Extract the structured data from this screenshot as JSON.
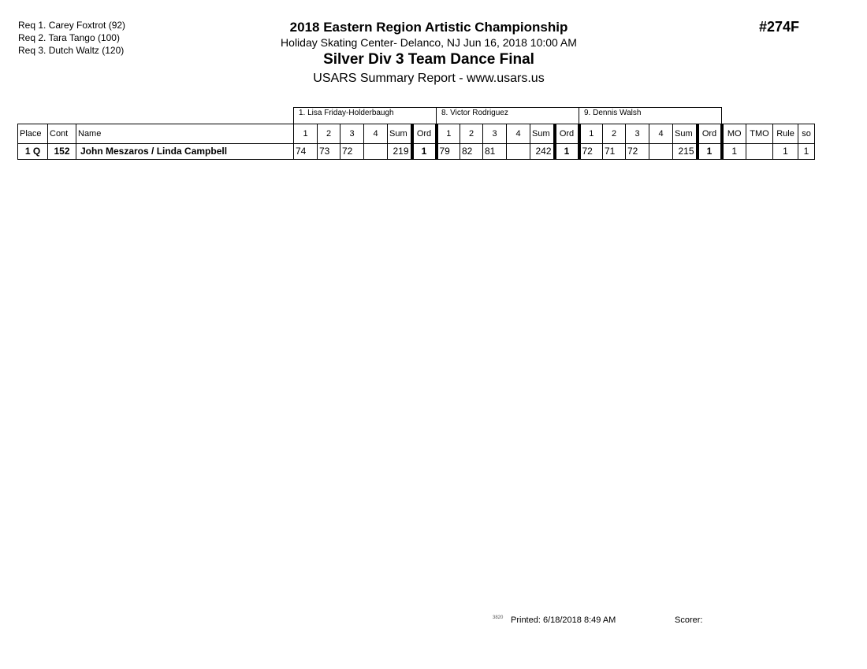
{
  "requirements": [
    "Req  1.  Carey Foxtrot (92)",
    "Req  2.  Tara Tango (100)",
    "Req  3.  Dutch Waltz (120)"
  ],
  "header": {
    "title": "2018 Eastern Region Artistic Championship",
    "venue": "Holiday Skating Center- Delanco, NJ  Jun 16, 2018  10:00 AM",
    "event": "Silver Div 3 Team Dance Final",
    "report": "USARS Summary Report - www.usars.us",
    "event_number": "#274F"
  },
  "table": {
    "judges": [
      "1.  Lisa Friday-Holderbaugh",
      "8.  Victor Rodriguez",
      "9.  Dennis Walsh"
    ],
    "columns": {
      "place": "Place",
      "cont": "Cont",
      "name": "Name",
      "judge_cols": [
        "1",
        "2",
        "3",
        "4",
        "Sum",
        "Ord"
      ],
      "mo": "MO",
      "tmo": "TMO",
      "rule": "Rule",
      "so": "so"
    },
    "rows": [
      {
        "place": "1 Q",
        "cont": "152",
        "name": "John Meszaros / Linda Campbell",
        "scores": [
          [
            "74",
            "73",
            "72",
            "",
            "219",
            "1"
          ],
          [
            "79",
            "82",
            "81",
            "",
            "242",
            "1"
          ],
          [
            "72",
            "71",
            "72",
            "",
            "215",
            "1"
          ]
        ],
        "mo": "1",
        "tmo": "",
        "rule": "1",
        "so": "1"
      }
    ]
  },
  "footer": {
    "code": "3820",
    "printed": "Printed:  6/18/2018  8:49 AM",
    "scorer": "Scorer:"
  }
}
